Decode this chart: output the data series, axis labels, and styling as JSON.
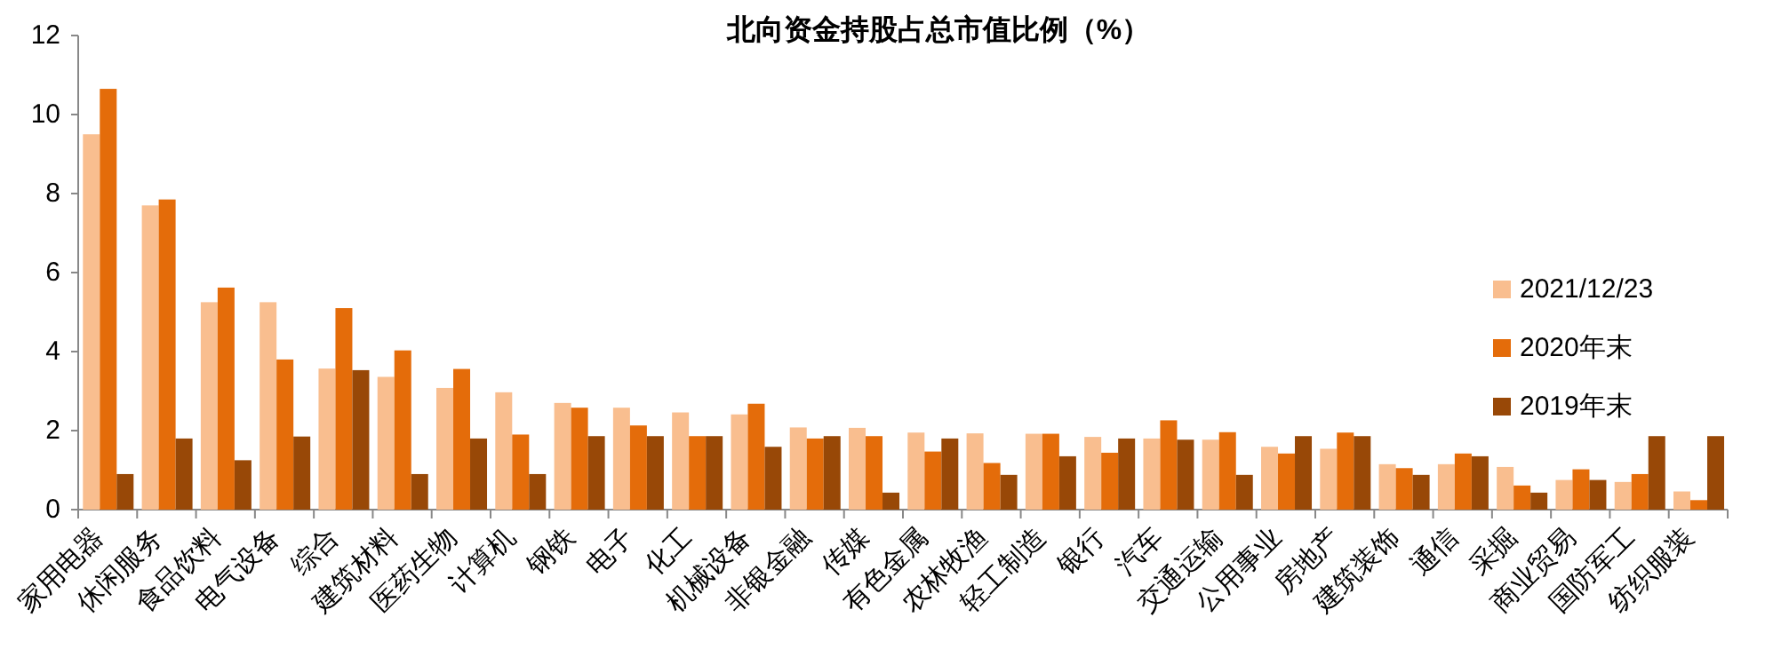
{
  "chart_data": {
    "type": "bar",
    "title": "北向资金持股占总市值比例（%）",
    "categories": [
      "家用电器",
      "休闲服务",
      "食品饮料",
      "电气设备",
      "综合",
      "建筑材料",
      "医药生物",
      "计算机",
      "钢铁",
      "电子",
      "化工",
      "机械设备",
      "非银金融",
      "传媒",
      "有色金属",
      "农林牧渔",
      "轻工制造",
      "银行",
      "汽车",
      "交通运输",
      "公用事业",
      "房地产",
      "建筑装饰",
      "通信",
      "采掘",
      "商业贸易",
      "国防军工",
      "纺织服装"
    ],
    "series": [
      {
        "name": "2021/12/23",
        "color": "#f9be8f",
        "values": [
          9.5,
          7.7,
          5.25,
          5.25,
          3.57,
          3.36,
          3.08,
          2.97,
          2.7,
          2.58,
          2.46,
          2.41,
          2.08,
          2.07,
          1.95,
          1.93,
          1.92,
          1.84,
          1.8,
          1.77,
          1.59,
          1.54,
          1.15,
          1.15,
          1.08,
          0.75,
          0.7,
          0.46
        ]
      },
      {
        "name": "2020年末",
        "color": "#e46c0a",
        "values": [
          10.65,
          7.85,
          5.62,
          3.8,
          5.1,
          4.03,
          3.56,
          1.9,
          2.58,
          2.13,
          1.86,
          2.68,
          1.8,
          1.86,
          1.47,
          1.18,
          1.92,
          1.44,
          2.26,
          1.96,
          1.42,
          1.95,
          1.05,
          1.42,
          0.61,
          1.02,
          0.9,
          0.24
        ]
      },
      {
        "name": "2019年末",
        "color": "#984807",
        "values": [
          0.9,
          1.8,
          1.25,
          1.85,
          3.53,
          0.9,
          1.8,
          0.9,
          1.86,
          1.86,
          1.86,
          1.59,
          1.86,
          0.43,
          1.8,
          0.88,
          1.35,
          1.8,
          1.77,
          0.88,
          1.86,
          1.86,
          0.88,
          1.35,
          0.43,
          0.75,
          1.86,
          1.86
        ]
      }
    ],
    "ylim": [
      0,
      12
    ],
    "yticks": [
      0,
      2,
      4,
      6,
      8,
      10,
      12
    ],
    "legend": "right"
  }
}
